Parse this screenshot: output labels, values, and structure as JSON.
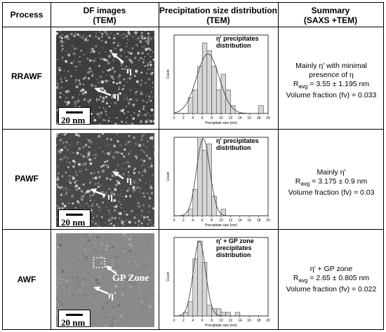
{
  "headers": {
    "process": "Process",
    "df_line1": "DF images",
    "df_line2": "(TEM)",
    "psd_line1": "Precipitation size distribution",
    "psd_line2": "(TEM)",
    "summary_line1": "Summary",
    "summary_line2": "(SAXS +TEM)"
  },
  "rows": [
    {
      "process": "RRAWF",
      "tem_labels": [
        "η",
        "η'"
      ],
      "scale": "20 nm",
      "summary": [
        "Mainly η' with minimal",
        "presence of η",
        "R",
        "avg",
        " = 3.55 ± 1.195 nm",
        "Volume fraction (fv) = 0.033"
      ]
    },
    {
      "process": "PAWF",
      "tem_labels": [
        "η",
        "η'"
      ],
      "scale": "20 nm",
      "summary": [
        "Mainly η'",
        "R",
        "avg",
        " = 3.175 ± 0.9 nm",
        "Volume fraction (fv) = 0.03"
      ]
    },
    {
      "process": "AWF",
      "tem_labels": [
        "GP Zone",
        "η'"
      ],
      "scale": "20 nm",
      "summary": [
        "η' + GP zone",
        "R",
        "avg",
        " = 2.65 ± 0.805 nm",
        "Volume fraction (fv) = 0.022"
      ]
    }
  ],
  "chart_data": [
    {
      "type": "bar",
      "title": "η' precipitates distribution",
      "xlabel": "Precipitate size (nm)",
      "ylabel": "Count",
      "xlim": [
        0,
        20
      ],
      "xticks": [
        0,
        2,
        4,
        6,
        8,
        10,
        12,
        14,
        16,
        18,
        20
      ],
      "bins": [
        [
          3,
          4,
          2
        ],
        [
          4,
          5,
          3
        ],
        [
          5,
          6,
          6
        ],
        [
          6,
          7,
          9
        ],
        [
          7,
          8,
          8
        ],
        [
          8,
          9,
          6
        ],
        [
          9,
          10,
          3
        ],
        [
          10,
          11,
          5
        ],
        [
          11,
          12,
          3
        ],
        [
          12,
          13,
          1
        ],
        [
          18,
          19,
          1
        ]
      ],
      "ymax": 10,
      "fit": {
        "mean": 7.2,
        "sd": 2.4,
        "peak": 7.6
      }
    },
    {
      "type": "bar",
      "title": "η' precipitates distribution",
      "xlabel": "Precipitate size (nm)",
      "ylabel": "Count",
      "xlim": [
        0,
        20
      ],
      "xticks": [
        0,
        2,
        4,
        6,
        8,
        10,
        12,
        14,
        16,
        18,
        20
      ],
      "bins": [
        [
          3,
          4,
          1
        ],
        [
          4,
          5,
          4
        ],
        [
          5,
          6,
          12
        ],
        [
          6,
          7,
          10
        ],
        [
          7,
          8,
          11
        ],
        [
          8,
          9,
          3
        ],
        [
          10,
          11,
          1
        ]
      ],
      "ymax": 12,
      "fit": {
        "mean": 6.2,
        "sd": 1.4,
        "peak": 11.8
      }
    },
    {
      "type": "bar",
      "title": "η' + GP zone precipitates distribution",
      "title_lines": [
        "η' + GP zone",
        "precipitates",
        "distribution"
      ],
      "xlabel": "Precipitate size (nm)",
      "ylabel": "Count",
      "xlim": [
        0,
        20
      ],
      "xticks": [
        0,
        2,
        4,
        6,
        8,
        10,
        12,
        14,
        16,
        18,
        20
      ],
      "bins": [
        [
          2,
          3,
          1
        ],
        [
          3,
          4,
          4
        ],
        [
          4,
          5,
          16
        ],
        [
          5,
          6,
          21
        ],
        [
          6,
          7,
          15
        ],
        [
          7,
          8,
          3
        ],
        [
          8,
          9,
          2
        ],
        [
          9,
          10,
          2
        ],
        [
          10,
          11,
          1
        ],
        [
          11,
          12,
          1
        ],
        [
          13,
          14,
          1
        ]
      ],
      "ymax": 22,
      "fit": {
        "mean": 5.4,
        "sd": 1.3,
        "peak": 21
      }
    }
  ]
}
